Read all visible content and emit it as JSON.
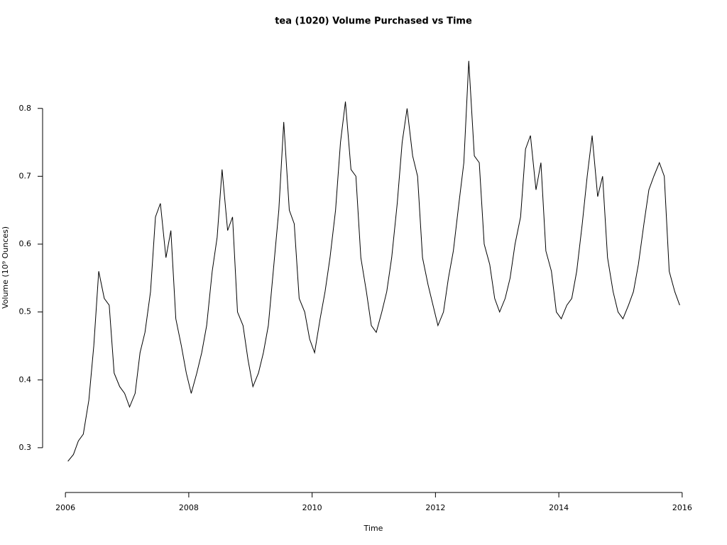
{
  "chart_data": {
    "type": "line",
    "title": "tea (1020) Volume Purchased vs Time",
    "xlabel": "Time",
    "ylabel": "Volume (10⁹ Ounces)",
    "color": "#000000",
    "xlim": [
      2005.63,
      2016.37
    ],
    "ylim": [
      0.234,
      0.897
    ],
    "xticks": [
      2006,
      2008,
      2010,
      2012,
      2014,
      2016
    ],
    "yticks": [
      0.3,
      0.4,
      0.5,
      0.6,
      0.7,
      0.8
    ],
    "x": [
      2006.04,
      2006.13,
      2006.21,
      2006.29,
      2006.38,
      2006.46,
      2006.54,
      2006.63,
      2006.71,
      2006.79,
      2006.88,
      2006.96,
      2007.04,
      2007.13,
      2007.21,
      2007.29,
      2007.38,
      2007.46,
      2007.54,
      2007.63,
      2007.71,
      2007.79,
      2007.88,
      2007.96,
      2008.04,
      2008.13,
      2008.21,
      2008.29,
      2008.38,
      2008.46,
      2008.54,
      2008.63,
      2008.71,
      2008.79,
      2008.88,
      2008.96,
      2009.04,
      2009.13,
      2009.21,
      2009.29,
      2009.38,
      2009.46,
      2009.54,
      2009.63,
      2009.71,
      2009.79,
      2009.88,
      2009.96,
      2010.04,
      2010.13,
      2010.21,
      2010.29,
      2010.38,
      2010.46,
      2010.54,
      2010.63,
      2010.71,
      2010.79,
      2010.88,
      2010.96,
      2011.04,
      2011.13,
      2011.21,
      2011.29,
      2011.38,
      2011.46,
      2011.54,
      2011.63,
      2011.71,
      2011.79,
      2011.88,
      2011.96,
      2012.04,
      2012.13,
      2012.21,
      2012.29,
      2012.38,
      2012.46,
      2012.54,
      2012.63,
      2012.71,
      2012.79,
      2012.88,
      2012.96,
      2013.04,
      2013.13,
      2013.21,
      2013.29,
      2013.38,
      2013.46,
      2013.54,
      2013.63,
      2013.71,
      2013.79,
      2013.88,
      2013.96,
      2014.04,
      2014.13,
      2014.21,
      2014.29,
      2014.38,
      2014.46,
      2014.54,
      2014.63,
      2014.71,
      2014.79,
      2014.88,
      2014.96,
      2015.04,
      2015.13,
      2015.21,
      2015.29,
      2015.38,
      2015.46,
      2015.54,
      2015.63,
      2015.71,
      2015.79,
      2015.88,
      2015.96
    ],
    "values": [
      0.28,
      0.29,
      0.31,
      0.32,
      0.37,
      0.45,
      0.56,
      0.52,
      0.51,
      0.41,
      0.39,
      0.38,
      0.36,
      0.38,
      0.44,
      0.47,
      0.53,
      0.64,
      0.66,
      0.58,
      0.62,
      0.49,
      0.45,
      0.41,
      0.38,
      0.41,
      0.44,
      0.48,
      0.56,
      0.61,
      0.71,
      0.62,
      0.64,
      0.5,
      0.48,
      0.43,
      0.39,
      0.41,
      0.44,
      0.48,
      0.57,
      0.65,
      0.78,
      0.65,
      0.63,
      0.52,
      0.5,
      0.46,
      0.44,
      0.49,
      0.53,
      0.58,
      0.65,
      0.75,
      0.81,
      0.71,
      0.7,
      0.58,
      0.53,
      0.48,
      0.47,
      0.5,
      0.53,
      0.58,
      0.66,
      0.75,
      0.8,
      0.73,
      0.7,
      0.58,
      0.54,
      0.51,
      0.48,
      0.5,
      0.55,
      0.59,
      0.66,
      0.72,
      0.87,
      0.73,
      0.72,
      0.6,
      0.57,
      0.52,
      0.5,
      0.52,
      0.55,
      0.6,
      0.64,
      0.74,
      0.76,
      0.68,
      0.72,
      0.59,
      0.56,
      0.5,
      0.49,
      0.51,
      0.52,
      0.56,
      0.63,
      0.7,
      0.76,
      0.67,
      0.7,
      0.58,
      0.53,
      0.5,
      0.49,
      0.51,
      0.53,
      0.57,
      0.63,
      0.68,
      0.7,
      0.72,
      0.7,
      0.56,
      0.53,
      0.51
    ]
  }
}
